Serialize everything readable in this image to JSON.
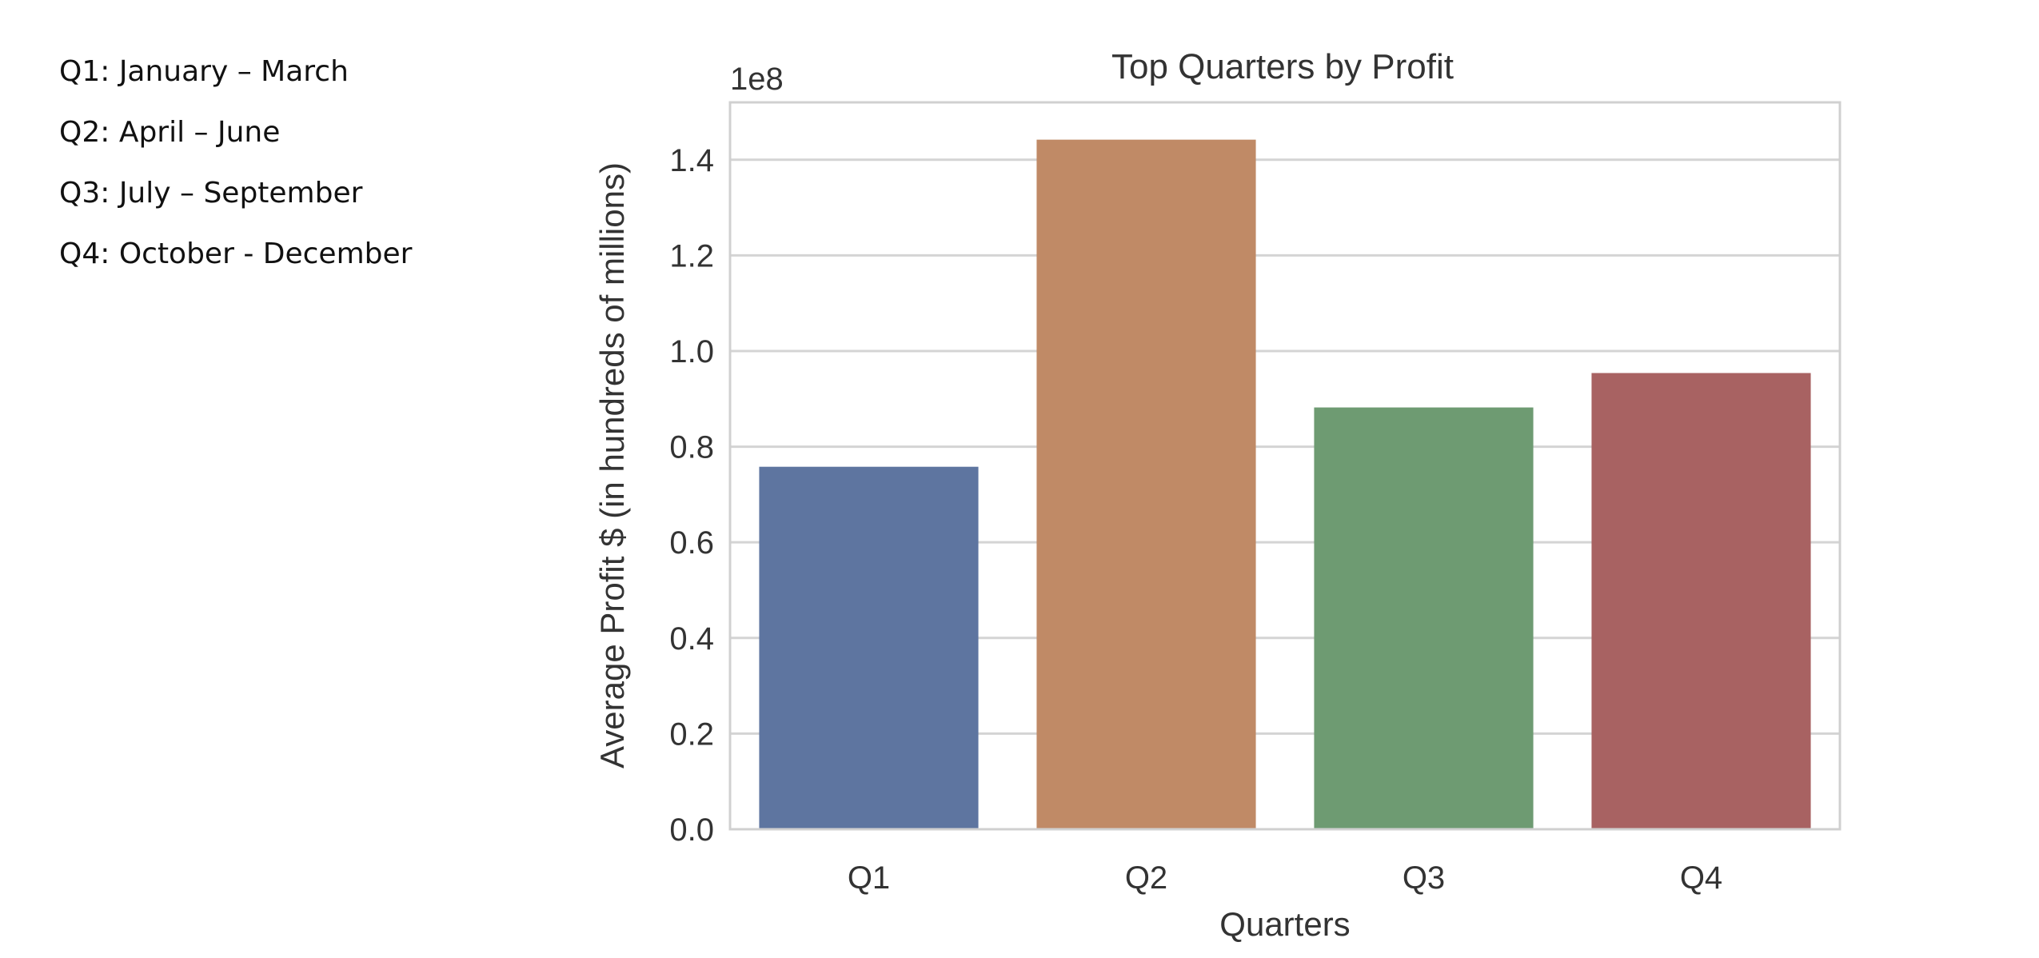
{
  "quarter_notes": [
    "Q1: January – March",
    "Q2: April – June",
    "Q3: July – September",
    "Q4: October - December"
  ],
  "chart_data": {
    "type": "bar",
    "title": "Top Quarters by Profit",
    "xlabel": "Quarters",
    "ylabel": "Average Profit $ (in hundreds of millions)",
    "y_offset_label": "1e8",
    "categories": [
      "Q1",
      "Q2",
      "Q3",
      "Q4"
    ],
    "values": [
      75800000,
      144200000,
      88200000,
      95400000
    ],
    "ylim": [
      0,
      152000000
    ],
    "yticks": [
      0,
      20000000,
      40000000,
      60000000,
      80000000,
      100000000,
      120000000,
      140000000
    ],
    "ytick_labels": [
      "0.0",
      "0.2",
      "0.4",
      "0.6",
      "0.8",
      "1.0",
      "1.2",
      "1.4"
    ],
    "colors": [
      "#5e75a0",
      "#c08a66",
      "#6e9b72",
      "#a86262"
    ],
    "grid": true,
    "grid_color": "#d4d4d4",
    "frame_color": "#d0d0d0"
  }
}
